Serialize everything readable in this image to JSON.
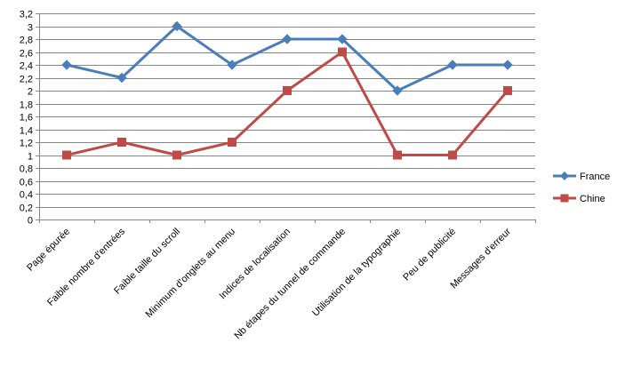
{
  "chart_data": {
    "type": "line",
    "categories": [
      "Page épurée",
      "Faible nombre d'entrées",
      "Faible taille du scroll",
      "Minimum d'onglets au menu",
      "Indices de localisation",
      "Nb étapes du tunnel de commande",
      "Utilisation de la typographie",
      "Peu de publicité",
      "Messages d'erreur"
    ],
    "series": [
      {
        "name": "France",
        "values": [
          2.4,
          2.2,
          3.0,
          2.4,
          2.8,
          2.8,
          2.0,
          2.4,
          2.4
        ],
        "color": "#4a7ebb",
        "marker": "diamond"
      },
      {
        "name": "Chine",
        "values": [
          1.0,
          1.2,
          1.0,
          1.2,
          2.0,
          2.6,
          1.0,
          1.0,
          2.0
        ],
        "color": "#be4b48",
        "marker": "square"
      }
    ],
    "ylim": [
      0,
      3.2
    ],
    "ytick_step": 0.2,
    "ytick_labels": [
      "0",
      "0,2",
      "0,4",
      "0,6",
      "0,8",
      "1",
      "1,2",
      "1,4",
      "1,6",
      "1,8",
      "2",
      "2,2",
      "2,4",
      "2,6",
      "2,8",
      "3",
      "3,2"
    ],
    "grid": true,
    "legend_position": "right",
    "title": "",
    "xlabel": "",
    "ylabel": ""
  }
}
